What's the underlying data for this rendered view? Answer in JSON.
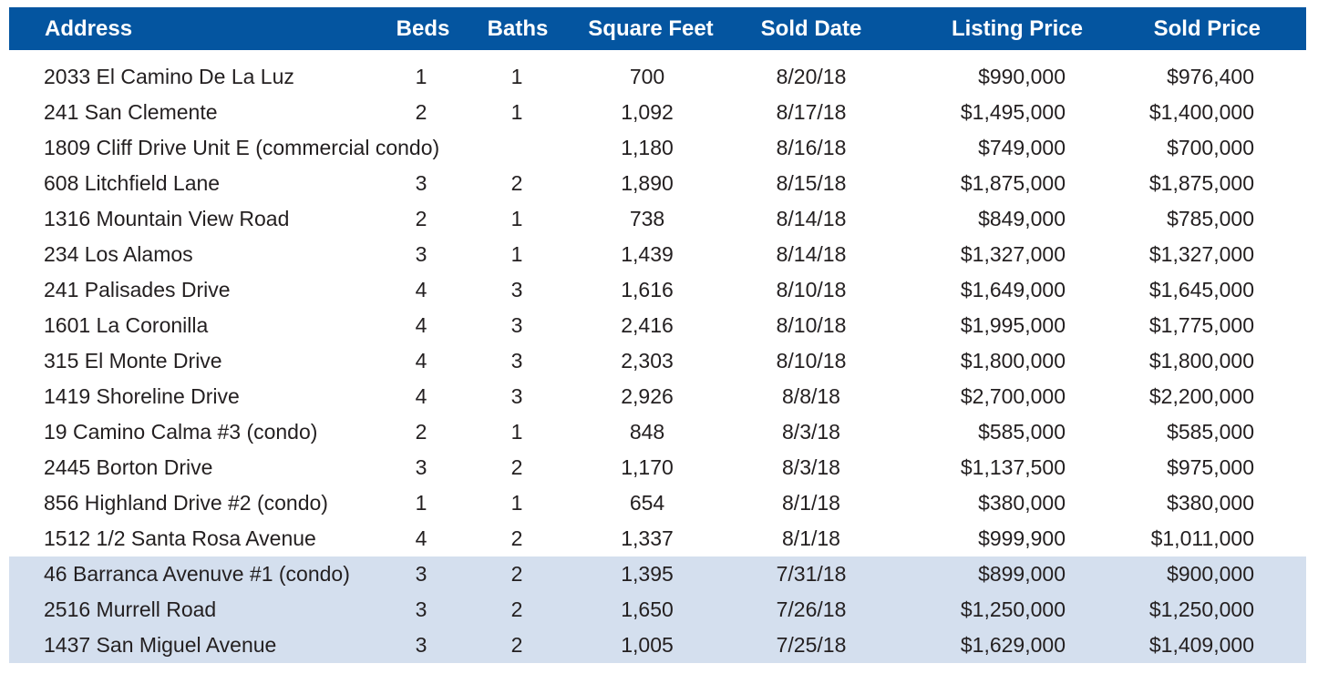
{
  "table": {
    "columns": [
      "Address",
      "Beds",
      "Baths",
      "Square Feet",
      "Sold Date",
      "Listing Price",
      "Sold Price"
    ],
    "header_color": "#0455a0",
    "shaded_row_color": "#d4dfee",
    "rows": [
      {
        "address": "2033 El Camino De La Luz",
        "beds": "1",
        "baths": "1",
        "sqft": "700",
        "sold_date": "8/20/18",
        "listing_price": "$990,000",
        "sold_price": "$976,400"
      },
      {
        "address": "241 San Clemente",
        "beds": "2",
        "baths": "1",
        "sqft": "1,092",
        "sold_date": "8/17/18",
        "listing_price": "$1,495,000",
        "sold_price": "$1,400,000"
      },
      {
        "address": "1809 Cliff Drive Unit E (commercial condo)",
        "beds": "",
        "baths": "",
        "sqft": "1,180",
        "sold_date": "8/16/18",
        "listing_price": "$749,000",
        "sold_price": "$700,000"
      },
      {
        "address": "608 Litchfield Lane",
        "beds": "3",
        "baths": "2",
        "sqft": "1,890",
        "sold_date": "8/15/18",
        "listing_price": "$1,875,000",
        "sold_price": "$1,875,000"
      },
      {
        "address": "1316 Mountain View Road",
        "beds": "2",
        "baths": "1",
        "sqft": "738",
        "sold_date": "8/14/18",
        "listing_price": "$849,000",
        "sold_price": "$785,000"
      },
      {
        "address": "234 Los Alamos",
        "beds": "3",
        "baths": "1",
        "sqft": "1,439",
        "sold_date": "8/14/18",
        "listing_price": "$1,327,000",
        "sold_price": "$1,327,000"
      },
      {
        "address": "241 Palisades Drive",
        "beds": "4",
        "baths": "3",
        "sqft": "1,616",
        "sold_date": "8/10/18",
        "listing_price": "$1,649,000",
        "sold_price": "$1,645,000"
      },
      {
        "address": "1601 La Coronilla",
        "beds": "4",
        "baths": "3",
        "sqft": "2,416",
        "sold_date": "8/10/18",
        "listing_price": "$1,995,000",
        "sold_price": "$1,775,000"
      },
      {
        "address": "315 El Monte Drive",
        "beds": "4",
        "baths": "3",
        "sqft": "2,303",
        "sold_date": "8/10/18",
        "listing_price": "$1,800,000",
        "sold_price": "$1,800,000"
      },
      {
        "address": "1419 Shoreline Drive",
        "beds": "4",
        "baths": "3",
        "sqft": "2,926",
        "sold_date": "8/8/18",
        "listing_price": "$2,700,000",
        "sold_price": "$2,200,000"
      },
      {
        "address": "19 Camino Calma #3 (condo)",
        "beds": "2",
        "baths": "1",
        "sqft": "848",
        "sold_date": "8/3/18",
        "listing_price": "$585,000",
        "sold_price": "$585,000"
      },
      {
        "address": "2445 Borton Drive",
        "beds": "3",
        "baths": "2",
        "sqft": "1,170",
        "sold_date": "8/3/18",
        "listing_price": "$1,137,500",
        "sold_price": "$975,000"
      },
      {
        "address": "856 Highland Drive #2 (condo)",
        "beds": "1",
        "baths": "1",
        "sqft": "654",
        "sold_date": "8/1/18",
        "listing_price": "$380,000",
        "sold_price": "$380,000"
      },
      {
        "address": "1512 1/2 Santa Rosa Avenue",
        "beds": "4",
        "baths": "2",
        "sqft": "1,337",
        "sold_date": "8/1/18",
        "listing_price": "$999,900",
        "sold_price": "$1,011,000"
      },
      {
        "address": "46 Barranca Avenuve #1 (condo)",
        "beds": "3",
        "baths": "2",
        "sqft": "1,395",
        "sold_date": "7/31/18",
        "listing_price": "$899,000",
        "sold_price": "$900,000",
        "shaded": true
      },
      {
        "address": "2516 Murrell Road",
        "beds": "3",
        "baths": "2",
        "sqft": "1,650",
        "sold_date": "7/26/18",
        "listing_price": "$1,250,000",
        "sold_price": "$1,250,000",
        "shaded": true
      },
      {
        "address": "1437 San Miguel Avenue",
        "beds": "3",
        "baths": "2",
        "sqft": "1,005",
        "sold_date": "7/25/18",
        "listing_price": "$1,629,000",
        "sold_price": "$1,409,000",
        "shaded": true
      }
    ]
  }
}
